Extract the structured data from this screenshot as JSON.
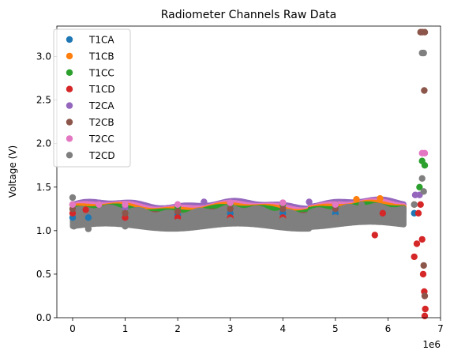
{
  "chart_data": {
    "type": "scatter",
    "title": "Radiometer Channels Raw Data",
    "xlabel": "",
    "ylabel": "Voltage (V)",
    "x_offset_label": "1e6",
    "xlim": [
      -300000,
      7000000
    ],
    "ylim": [
      0,
      3.35
    ],
    "x_ticks": [
      0,
      1000000,
      2000000,
      3000000,
      4000000,
      5000000,
      6000000,
      7000000
    ],
    "x_tick_labels": [
      "0",
      "1",
      "2",
      "3",
      "4",
      "5",
      "6",
      "7"
    ],
    "y_ticks": [
      0.0,
      0.5,
      1.0,
      1.5,
      2.0,
      2.5,
      3.0
    ],
    "y_tick_labels": [
      "0.0",
      "0.5",
      "1.0",
      "1.5",
      "2.0",
      "2.5",
      "3.0"
    ],
    "grid": false,
    "legend_position": "top-left",
    "series": [
      {
        "name": "T1CA",
        "color": "#1f77b4",
        "points": [
          [
            0,
            1.15
          ],
          [
            300000,
            1.15
          ],
          [
            1000000,
            1.15
          ],
          [
            2000000,
            1.18
          ],
          [
            3000000,
            1.2
          ],
          [
            4000000,
            1.2
          ],
          [
            5000000,
            1.2
          ],
          [
            5900000,
            1.2
          ],
          [
            6500000,
            1.2
          ]
        ]
      },
      {
        "name": "T1CB",
        "color": "#ff7f0e",
        "points": [
          [
            0,
            1.3
          ],
          [
            1000000,
            1.25
          ],
          [
            2000000,
            1.28
          ],
          [
            3000000,
            1.3
          ],
          [
            4000000,
            1.3
          ],
          [
            5000000,
            1.3
          ],
          [
            5400000,
            1.36
          ],
          [
            5850000,
            1.37
          ],
          [
            6500000,
            1.3
          ]
        ]
      },
      {
        "name": "T1CC",
        "color": "#2ca02c",
        "points": [
          [
            0,
            1.3
          ],
          [
            1000000,
            1.25
          ],
          [
            2000000,
            1.27
          ],
          [
            3000000,
            1.3
          ],
          [
            4000000,
            1.3
          ],
          [
            5000000,
            1.3
          ],
          [
            6600000,
            1.5
          ],
          [
            6650000,
            1.8
          ],
          [
            6700000,
            1.75
          ]
        ]
      },
      {
        "name": "T1CD",
        "color": "#d62728",
        "points": [
          [
            0,
            1.2
          ],
          [
            250000,
            1.24
          ],
          [
            1000000,
            1.15
          ],
          [
            2000000,
            1.15
          ],
          [
            3000000,
            1.15
          ],
          [
            4000000,
            1.15
          ],
          [
            5000000,
            1.15
          ],
          [
            5750000,
            0.95
          ],
          [
            5900000,
            1.2
          ],
          [
            6500000,
            0.7
          ],
          [
            6550000,
            0.85
          ],
          [
            6580000,
            1.2
          ],
          [
            6620000,
            1.3
          ],
          [
            6650000,
            0.9
          ],
          [
            6670000,
            0.5
          ],
          [
            6690000,
            0.3
          ],
          [
            6710000,
            0.1
          ],
          [
            6700000,
            0.02
          ]
        ]
      },
      {
        "name": "T2CA",
        "color": "#9467bd",
        "points": [
          [
            0,
            1.3
          ],
          [
            1000000,
            1.26
          ],
          [
            2000000,
            1.3
          ],
          [
            2500000,
            1.33
          ],
          [
            3000000,
            1.32
          ],
          [
            4000000,
            1.32
          ],
          [
            4500000,
            1.33
          ],
          [
            5000000,
            1.3
          ],
          [
            6520000,
            1.41
          ],
          [
            6600000,
            1.41
          ]
        ]
      },
      {
        "name": "T2CB",
        "color": "#8c564b",
        "points": [
          [
            0,
            1.25
          ],
          [
            1000000,
            1.2
          ],
          [
            2000000,
            1.22
          ],
          [
            3000000,
            1.25
          ],
          [
            4000000,
            1.25
          ],
          [
            5000000,
            1.25
          ],
          [
            6620000,
            3.28
          ],
          [
            6650000,
            3.28
          ],
          [
            6700000,
            3.28
          ],
          [
            6690000,
            2.61
          ],
          [
            6680000,
            0.6
          ],
          [
            6700000,
            0.25
          ]
        ]
      },
      {
        "name": "T2CC",
        "color": "#e377c2",
        "points": [
          [
            0,
            1.3
          ],
          [
            500000,
            1.3
          ],
          [
            1000000,
            1.3
          ],
          [
            2000000,
            1.3
          ],
          [
            3000000,
            1.32
          ],
          [
            4000000,
            1.32
          ],
          [
            5000000,
            1.3
          ],
          [
            6650000,
            1.89
          ],
          [
            6700000,
            1.89
          ]
        ]
      },
      {
        "name": "T2CD",
        "color": "#7f7f7f",
        "points": [
          [
            0,
            1.38
          ],
          [
            25000,
            1.05
          ],
          [
            300000,
            1.02
          ],
          [
            1000000,
            1.05
          ],
          [
            2000000,
            1.1
          ],
          [
            3000000,
            1.12
          ],
          [
            4000000,
            1.12
          ],
          [
            5000000,
            1.15
          ],
          [
            5500000,
            1.3
          ],
          [
            5950000,
            1.1
          ],
          [
            6500000,
            1.3
          ],
          [
            6650000,
            3.04
          ],
          [
            6680000,
            3.04
          ],
          [
            6650000,
            1.6
          ],
          [
            6680000,
            1.45
          ]
        ]
      }
    ]
  }
}
